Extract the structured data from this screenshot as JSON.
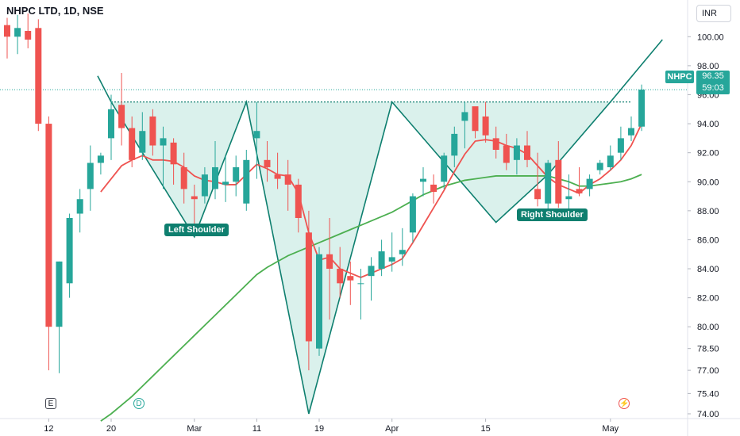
{
  "header": {
    "title": "NHPC LTD, 1D, NSE",
    "currency": "INR"
  },
  "price_tag": {
    "symbol": "NHPC",
    "price": "96.35",
    "countdown": "59:03"
  },
  "labels": {
    "left_shoulder": "Left Shoulder",
    "right_shoulder": "Right Shoulder"
  },
  "events": {
    "earnings": "E",
    "dividend": "D",
    "split": "⚡"
  },
  "colors": {
    "up": "#26a69a",
    "down": "#ef5350",
    "ma_fast": "#ef5350",
    "ma_slow": "#4caf50",
    "pattern_fill": "#d4efe9",
    "pattern_line": "#0e7f6f",
    "last_price_line": "#26a69a"
  },
  "chart_data": {
    "type": "candlestick",
    "title": "NHPC LTD, 1D, NSE",
    "ylim": [
      74.0,
      101.0
    ],
    "y_ticks": [
      "100.00",
      "98.00",
      "96.00",
      "94.00",
      "92.00",
      "90.00",
      "88.00",
      "86.00",
      "84.00",
      "82.00",
      "80.00",
      "78.50",
      "77.00",
      "75.40",
      "74.00"
    ],
    "x_ticks": [
      {
        "label": "12",
        "index": 4
      },
      {
        "label": "20",
        "index": 10
      },
      {
        "label": "Mar",
        "index": 18
      },
      {
        "label": "11",
        "index": 24
      },
      {
        "label": "19",
        "index": 30
      },
      {
        "label": "Apr",
        "index": 37
      },
      {
        "label": "15",
        "index": 46
      },
      {
        "label": "May",
        "index": 58
      }
    ],
    "candles": [
      [
        100.8,
        101.3,
        98.5,
        100.0
      ],
      [
        100.0,
        101.5,
        98.8,
        100.6
      ],
      [
        100.4,
        101.6,
        99.2,
        99.8
      ],
      [
        100.6,
        101.2,
        93.5,
        94.0
      ],
      [
        94.0,
        94.5,
        77.0,
        80.0
      ],
      [
        80.0,
        84.5,
        76.8,
        84.5
      ],
      [
        83.0,
        87.8,
        82.0,
        87.5
      ],
      [
        87.8,
        89.5,
        86.5,
        88.8
      ],
      [
        89.5,
        92.5,
        88.0,
        91.3
      ],
      [
        91.3,
        92.0,
        90.5,
        91.8
      ],
      [
        93.0,
        96.0,
        91.5,
        95.0
      ],
      [
        95.3,
        97.5,
        92.5,
        93.7
      ],
      [
        93.7,
        94.5,
        91.0,
        91.5
      ],
      [
        92.0,
        94.8,
        91.5,
        93.5
      ],
      [
        94.5,
        95.0,
        91.8,
        92.5
      ],
      [
        92.5,
        93.8,
        89.5,
        93.0
      ],
      [
        92.7,
        93.0,
        89.8,
        91.2
      ],
      [
        91.0,
        92.0,
        88.5,
        89.5
      ],
      [
        89.0,
        89.8,
        87.0,
        88.8
      ],
      [
        89.0,
        91.0,
        88.5,
        90.5
      ],
      [
        89.5,
        92.8,
        88.8,
        91.0
      ],
      [
        89.8,
        91.8,
        88.6,
        90.0
      ],
      [
        90.0,
        91.8,
        89.0,
        91.0
      ],
      [
        88.5,
        92.2,
        88.0,
        91.5
      ],
      [
        93.0,
        95.5,
        90.2,
        93.5
      ],
      [
        91.5,
        92.8,
        90.0,
        91.0
      ],
      [
        90.5,
        92.0,
        89.5,
        90.2
      ],
      [
        90.5,
        91.5,
        88.0,
        89.8
      ],
      [
        89.8,
        90.2,
        86.5,
        87.5
      ],
      [
        86.5,
        88.0,
        77.0,
        79.0
      ],
      [
        78.5,
        85.5,
        78.0,
        85.0
      ],
      [
        85.0,
        87.5,
        80.5,
        84.0
      ],
      [
        84.0,
        85.5,
        82.0,
        83.0
      ],
      [
        83.5,
        84.5,
        81.5,
        83.2
      ],
      [
        83.0,
        84.0,
        80.5,
        83.0
      ],
      [
        83.5,
        84.8,
        81.8,
        84.2
      ],
      [
        84.0,
        86.0,
        83.5,
        85.2
      ],
      [
        84.5,
        86.5,
        83.8,
        84.8
      ],
      [
        85.0,
        86.8,
        84.2,
        85.3
      ],
      [
        86.5,
        89.2,
        85.8,
        89.0
      ],
      [
        90.0,
        91.0,
        89.0,
        90.2
      ],
      [
        89.8,
        90.5,
        88.5,
        89.3
      ],
      [
        90.0,
        92.0,
        89.5,
        91.8
      ],
      [
        91.8,
        93.8,
        91.0,
        93.3
      ],
      [
        94.2,
        95.5,
        92.3,
        94.8
      ],
      [
        95.2,
        95.0,
        93.0,
        93.5
      ],
      [
        94.5,
        95.5,
        92.7,
        93.2
      ],
      [
        93.0,
        93.8,
        91.6,
        92.2
      ],
      [
        92.5,
        93.3,
        90.8,
        91.3
      ],
      [
        91.5,
        93.0,
        90.5,
        92.5
      ],
      [
        92.5,
        93.5,
        91.0,
        91.5
      ],
      [
        89.5,
        92.0,
        88.3,
        88.8
      ],
      [
        88.5,
        91.5,
        88.0,
        91.3
      ],
      [
        91.5,
        92.8,
        88.2,
        88.5
      ],
      [
        88.8,
        90.5,
        87.5,
        89.0
      ],
      [
        89.5,
        91.0,
        89.0,
        89.2
      ],
      [
        89.5,
        90.5,
        89.0,
        90.2
      ],
      [
        90.8,
        91.5,
        90.5,
        91.3
      ],
      [
        91.0,
        92.5,
        90.8,
        91.8
      ],
      [
        92.0,
        93.8,
        91.5,
        93.0
      ],
      [
        93.2,
        94.5,
        92.8,
        93.7
      ],
      [
        93.8,
        96.7,
        93.5,
        96.35
      ]
    ],
    "ma_fast": [
      null,
      null,
      null,
      null,
      null,
      null,
      null,
      null,
      null,
      89.3,
      90.2,
      91.1,
      91.5,
      91.8,
      91.5,
      91.5,
      91.4,
      91.0,
      90.4,
      90.1,
      90.0,
      89.8,
      89.8,
      90.5,
      91.2,
      90.9,
      90.5,
      90.4,
      89.2,
      86.5,
      84.6,
      84.8,
      84.0,
      83.7,
      83.4,
      83.7,
      84.0,
      84.3,
      84.7,
      85.8,
      87.0,
      88.2,
      89.4,
      90.7,
      91.9,
      92.8,
      92.9,
      92.8,
      92.5,
      92.3,
      91.9,
      91.1,
      90.3,
      89.8,
      89.5,
      89.2,
      89.8,
      90.2,
      90.8,
      91.5,
      92.5,
      94.0
    ],
    "ma_slow": [
      null,
      null,
      null,
      null,
      null,
      null,
      null,
      null,
      null,
      73.5,
      74.0,
      74.6,
      75.2,
      75.9,
      76.6,
      77.3,
      78.0,
      78.7,
      79.4,
      80.1,
      80.8,
      81.5,
      82.2,
      82.9,
      83.6,
      84.1,
      84.5,
      84.9,
      85.2,
      85.5,
      85.8,
      86.1,
      86.4,
      86.7,
      87.0,
      87.3,
      87.6,
      87.9,
      88.3,
      88.7,
      89.1,
      89.4,
      89.7,
      89.9,
      90.1,
      90.2,
      90.3,
      90.4,
      90.4,
      90.4,
      90.4,
      90.4,
      90.4,
      90.2,
      90.0,
      89.7,
      89.7,
      89.8,
      89.9,
      90.0,
      90.2,
      90.5
    ],
    "pattern_points": [
      [
        10,
        95.5
      ],
      [
        18,
        86.2
      ],
      [
        23,
        95.5
      ],
      [
        29,
        74.0
      ],
      [
        37,
        95.5
      ],
      [
        47,
        87.2
      ],
      [
        52,
        90.5
      ],
      [
        58,
        95.5
      ],
      [
        63,
        99.8
      ]
    ],
    "neckline": {
      "from_index": 10,
      "to_index": 60,
      "value": 95.5
    },
    "last_price": 96.35
  }
}
